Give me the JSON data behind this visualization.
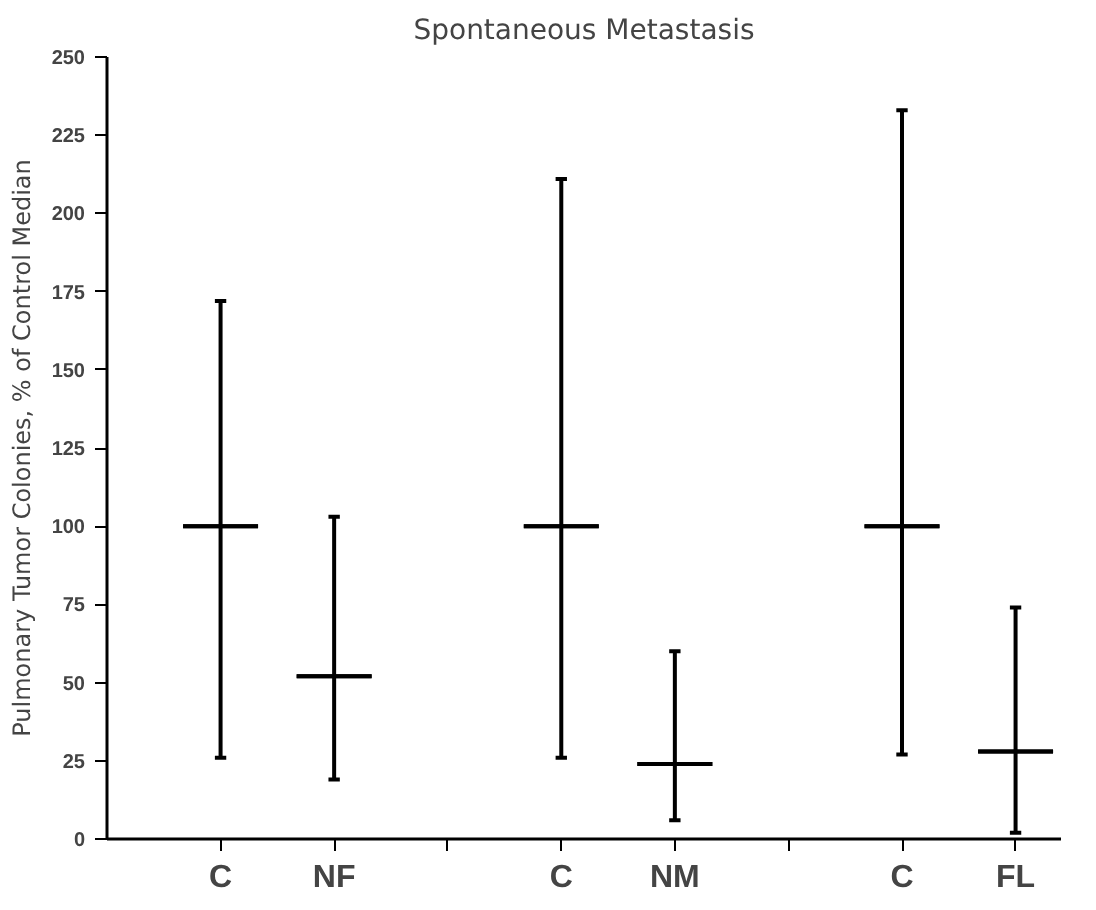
{
  "chart_data": {
    "type": "box",
    "title": "Spontaneous Metastasis",
    "ylabel": "Pulmonary Tumor Colonies, % of Control Median",
    "categories": [
      "C",
      "NF",
      null,
      "C",
      "NM",
      null,
      "C",
      "FL"
    ],
    "boxes": [
      {
        "low": 26,
        "q1": 100,
        "median": 100,
        "q3": 100,
        "high": 172
      },
      {
        "low": 19,
        "q1": 52,
        "median": 52,
        "q3": 52,
        "high": 103
      },
      null,
      {
        "low": 26,
        "q1": 100,
        "median": 100,
        "q3": 100,
        "high": 211
      },
      {
        "low": 6,
        "q1": 24,
        "median": 24,
        "q3": 24,
        "high": 60
      },
      null,
      {
        "low": 27,
        "q1": 100,
        "median": 100,
        "q3": 100,
        "high": 233
      },
      {
        "low": 2,
        "q1": 28,
        "median": 28,
        "q3": 28,
        "high": 74
      }
    ],
    "color": "#000000",
    "ylim": [
      0,
      250
    ],
    "yticks": [
      0,
      25,
      50,
      75,
      100,
      125,
      150,
      175,
      200,
      225,
      250
    ],
    "grid": false
  }
}
